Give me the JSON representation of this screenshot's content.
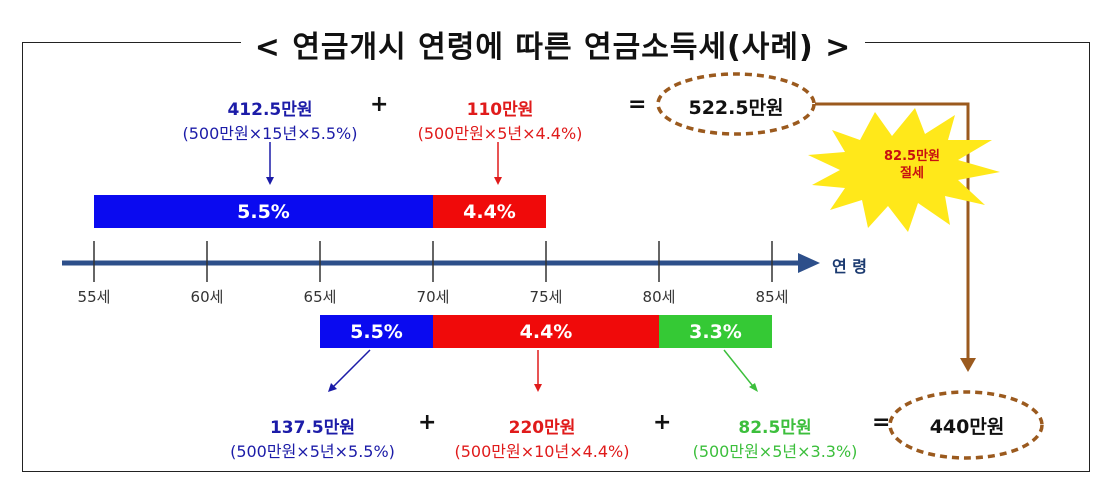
{
  "title": "< 연금개시 연령에 따른 연금소득세(사례) >",
  "scenario_a": {
    "part1": {
      "amount": "412.5만원",
      "formula": "(500만원×15년×5.5%)"
    },
    "plus": "+",
    "part2": {
      "amount": "110만원",
      "formula": "(500만원×5년×4.4%)"
    },
    "equals": "=",
    "total": "522.5만원",
    "bar1_label": "5.5%",
    "bar2_label": "4.4%"
  },
  "savings": {
    "line1": "82.5만원",
    "line2": "절세"
  },
  "axis": {
    "label": "연 령",
    "ticks": [
      "55세",
      "60세",
      "65세",
      "70세",
      "75세",
      "80세",
      "85세"
    ]
  },
  "scenario_b": {
    "bar1_label": "5.5%",
    "bar2_label": "4.4%",
    "bar3_label": "3.3%",
    "part1": {
      "amount": "137.5만원",
      "formula": "(500만원×5년×5.5%)"
    },
    "plus1": "+",
    "part2": {
      "amount": "220만원",
      "formula": "(500만원×10년×4.4%)"
    },
    "plus2": "+",
    "part3": {
      "amount": "82.5만원",
      "formula": "(500만원×5년×3.3%)"
    },
    "equals": "=",
    "total": "440만원"
  },
  "colors": {
    "blue": "#0a0af0",
    "red": "#f00a0a",
    "green": "#35c935",
    "brown": "#9b5a1e",
    "axis": "#2d4f8a",
    "burst": "#ffe81a"
  }
}
